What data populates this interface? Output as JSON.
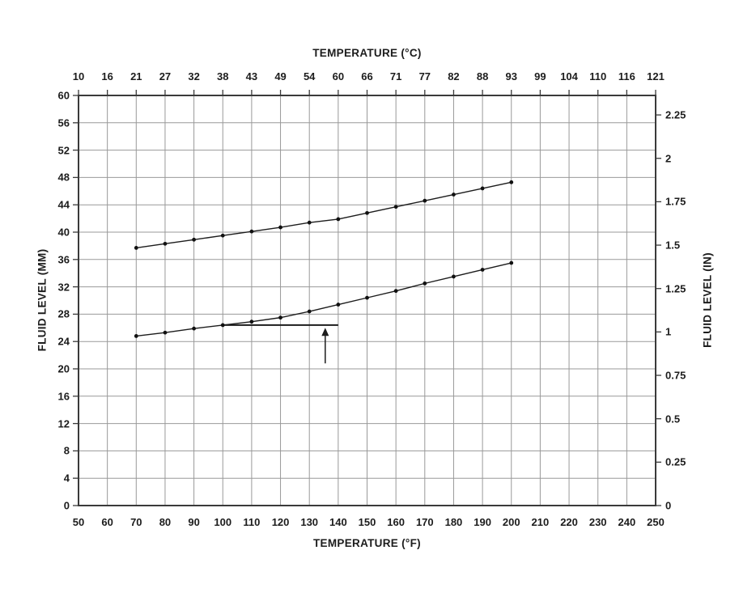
{
  "chart_data": {
    "type": "line",
    "title": "",
    "x": [
      70,
      80,
      90,
      100,
      110,
      120,
      130,
      140,
      150,
      160,
      170,
      180,
      190,
      200
    ],
    "series": [
      {
        "name": "upper-fluid-level-curve",
        "values": [
          37.7,
          38.3,
          38.9,
          39.5,
          40.1,
          40.7,
          41.4,
          41.9,
          42.8,
          43.7,
          44.6,
          45.5,
          46.4,
          47.3
        ]
      },
      {
        "name": "lower-fluid-level-curve",
        "values": [
          24.8,
          25.3,
          25.9,
          26.4,
          26.9,
          27.5,
          28.4,
          29.4,
          30.4,
          31.4,
          32.5,
          33.5,
          34.5,
          35.5
        ]
      }
    ],
    "axes": {
      "bottom": {
        "label": "TEMPERATURE (°F)",
        "min": 50,
        "max": 250,
        "ticks": [
          50,
          60,
          70,
          80,
          90,
          100,
          110,
          120,
          130,
          140,
          150,
          160,
          170,
          180,
          190,
          200,
          210,
          220,
          230,
          240,
          250
        ]
      },
      "top": {
        "label": "TEMPERATURE (°C)",
        "tick_labels": [
          "10",
          "16",
          "21",
          "27",
          "32",
          "38",
          "43",
          "49",
          "54",
          "60",
          "66",
          "71",
          "77",
          "82",
          "88",
          "93",
          "99",
          "104",
          "110",
          "116",
          "121"
        ]
      },
      "left": {
        "label": "FLUID LEVEL (MM)",
        "min": 0,
        "max": 60,
        "ticks": [
          0,
          4,
          8,
          12,
          16,
          20,
          24,
          28,
          32,
          36,
          40,
          44,
          48,
          52,
          56,
          60
        ]
      },
      "right": {
        "label": "FLUID LEVEL (IN)",
        "mm_per_unit": 25.4,
        "ticks": [
          0,
          0.25,
          0.5,
          0.75,
          1,
          1.25,
          1.5,
          1.75,
          2,
          2.25
        ]
      }
    },
    "grid": true,
    "legend": "none",
    "annotation": {
      "hline": {
        "y_mm": 26.4,
        "x1_f": 100,
        "x2_f": 140
      },
      "arrow": {
        "x_f": 135.5,
        "y_tail_mm": 20.8,
        "y_tip_mm": 26.0
      }
    },
    "colors": {
      "line": "#1c1c1c",
      "marker": "#111111",
      "grid": "#999999",
      "frame": "#3a3a3a",
      "text": "#1c1c1c",
      "background": "#ffffff"
    }
  }
}
